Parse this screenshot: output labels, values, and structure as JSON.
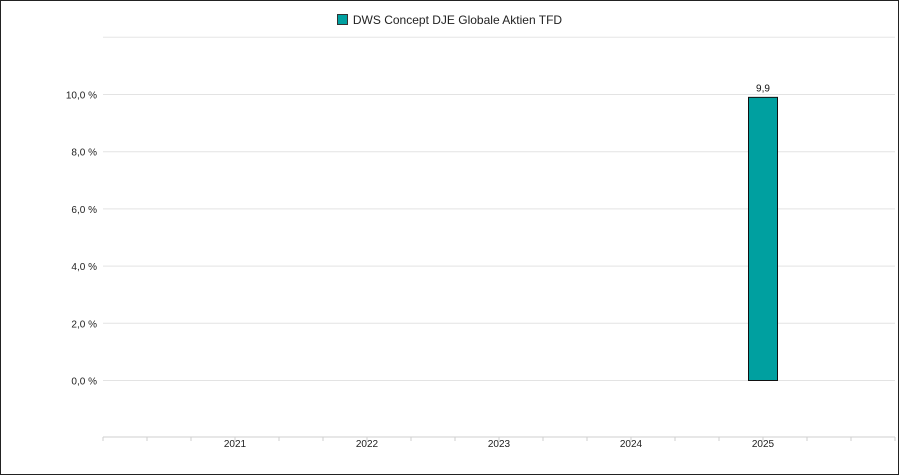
{
  "chart_data": {
    "type": "bar",
    "categories": [
      "2021",
      "2022",
      "2023",
      "2024",
      "2025"
    ],
    "series": [
      {
        "name": "DWS Concept DJE Globale Aktien TFD",
        "color": "#00A0A0",
        "values": [
          null,
          null,
          null,
          null,
          9.9
        ],
        "data_labels": [
          null,
          null,
          null,
          null,
          "9,9"
        ]
      }
    ],
    "y_ticks": [
      "0,0 %",
      "2,0 %",
      "4,0 %",
      "6,0 %",
      "8,0 %",
      "10,0 %"
    ],
    "y_tick_values": [
      0,
      2,
      4,
      6,
      8,
      10
    ],
    "ylim": [
      -2,
      12
    ],
    "grid": true,
    "legend_position": "top-center"
  }
}
